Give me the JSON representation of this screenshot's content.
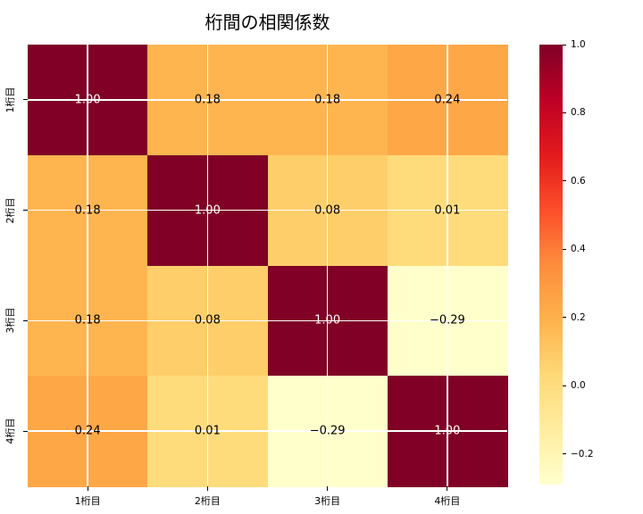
{
  "title": "桁間の相関係数",
  "chart_data": {
    "type": "heatmap",
    "title": "桁間の相関係数",
    "x_tick_labels": [
      "1桁目",
      "2桁目",
      "3桁目",
      "4桁目"
    ],
    "y_tick_labels": [
      "1桁目",
      "2桁目",
      "3桁目",
      "4桁目"
    ],
    "matrix": [
      [
        1.0,
        0.18,
        0.18,
        0.24
      ],
      [
        0.18,
        1.0,
        0.08,
        0.01
      ],
      [
        0.18,
        0.08,
        1.0,
        -0.29
      ],
      [
        0.24,
        0.01,
        -0.29,
        1.0
      ]
    ],
    "cell_labels": [
      [
        "1.00",
        "0.18",
        "0.18",
        "0.24"
      ],
      [
        "0.18",
        "1.00",
        "0.08",
        "0.01"
      ],
      [
        "0.18",
        "0.08",
        "1.00",
        "−0.29"
      ],
      [
        "0.24",
        "0.01",
        "−0.29",
        "1.00"
      ]
    ],
    "vmin": -0.29,
    "vmax": 1.0,
    "colormap": "YlOrRd",
    "colormap_stops": [
      "#FFFFCC",
      "#FFEDA0",
      "#FED976",
      "#FEB24C",
      "#FD8D3C",
      "#FC4E2A",
      "#E31A1C",
      "#BD0026",
      "#800026"
    ],
    "colorbar_ticks": [
      {
        "value": 1.0,
        "label": "1.0"
      },
      {
        "value": 0.8,
        "label": "0.8"
      },
      {
        "value": 0.6,
        "label": "0.6"
      },
      {
        "value": 0.4,
        "label": "0.4"
      },
      {
        "value": 0.2,
        "label": "0.2"
      },
      {
        "value": 0.0,
        "label": "0.0"
      },
      {
        "value": -0.2,
        "label": "−0.2"
      }
    ],
    "colorbar_position": "right",
    "grid": true,
    "grid_color": "#ffffff",
    "annot_color_on_dark": "#ffffff",
    "annot_color_on_light": "#000000",
    "tick_color": "#000000",
    "background": "#ffffff"
  }
}
